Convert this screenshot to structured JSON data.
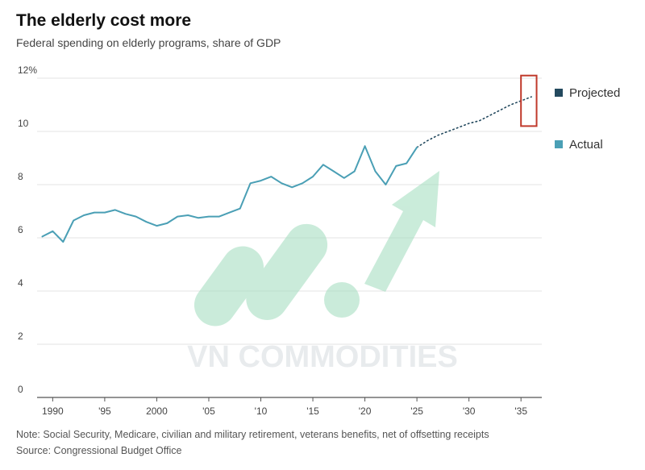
{
  "chart_data": {
    "type": "line",
    "title": "The elderly cost more",
    "subtitle": "Federal spending on elderly programs, share of GDP",
    "xlabel": "",
    "ylabel": "",
    "xlim": [
      1988.5,
      2037
    ],
    "ylim": [
      0,
      12
    ],
    "y_ticks": [
      {
        "value": 0,
        "label": "0"
      },
      {
        "value": 2,
        "label": "2"
      },
      {
        "value": 4,
        "label": "4"
      },
      {
        "value": 6,
        "label": "6"
      },
      {
        "value": 8,
        "label": "8"
      },
      {
        "value": 10,
        "label": "10"
      },
      {
        "value": 12,
        "label": "12%"
      }
    ],
    "x_ticks": [
      {
        "value": 1990,
        "label": "1990"
      },
      {
        "value": 1995,
        "label": "'95"
      },
      {
        "value": 2000,
        "label": "2000"
      },
      {
        "value": 2005,
        "label": "'05"
      },
      {
        "value": 2010,
        "label": "'10"
      },
      {
        "value": 2015,
        "label": "'15"
      },
      {
        "value": 2020,
        "label": "'20"
      },
      {
        "value": 2025,
        "label": "'25"
      },
      {
        "value": 2030,
        "label": "'30"
      },
      {
        "value": 2035,
        "label": "'35"
      }
    ],
    "grid": "horizontal",
    "legend_position": "right",
    "series": [
      {
        "name": "Projected",
        "color": "#23495e",
        "style": "dotted",
        "x": [
          2025,
          2026,
          2027,
          2028,
          2029,
          2030,
          2031,
          2032,
          2033,
          2034,
          2035,
          2036
        ],
        "y": [
          9.4,
          9.65,
          9.85,
          10.0,
          10.15,
          10.3,
          10.4,
          10.6,
          10.8,
          11.0,
          11.15,
          11.3
        ]
      },
      {
        "name": "Actual",
        "color": "#4a9fb5",
        "style": "solid",
        "x": [
          1989,
          1990,
          1991,
          1992,
          1993,
          1994,
          1995,
          1996,
          1997,
          1998,
          1999,
          2000,
          2001,
          2002,
          2003,
          2004,
          2005,
          2006,
          2007,
          2008,
          2009,
          2010,
          2011,
          2012,
          2013,
          2014,
          2015,
          2016,
          2017,
          2018,
          2019,
          2020,
          2021,
          2022,
          2023,
          2024,
          2025
        ],
        "y": [
          6.05,
          6.25,
          5.85,
          6.65,
          6.85,
          6.95,
          6.95,
          7.05,
          6.9,
          6.8,
          6.6,
          6.45,
          6.55,
          6.8,
          6.85,
          6.75,
          6.8,
          6.8,
          6.95,
          7.1,
          8.05,
          8.15,
          8.3,
          8.05,
          7.9,
          8.05,
          8.3,
          8.75,
          8.5,
          8.25,
          8.5,
          9.45,
          8.5,
          8.0,
          8.7,
          8.8,
          9.4
        ]
      }
    ],
    "highlight_box": {
      "x_range": [
        2035,
        2036.5
      ],
      "y_range": [
        10.2,
        12.1
      ],
      "color": "#c0392b"
    }
  },
  "watermark": {
    "text": "VN COMMODITIES",
    "color": "#8fd3b0"
  },
  "footer": {
    "note": "Note: Social Security, Medicare, civilian and military retirement, veterans benefits, net of offsetting receipts",
    "source": "Source: Congressional Budget Office"
  }
}
